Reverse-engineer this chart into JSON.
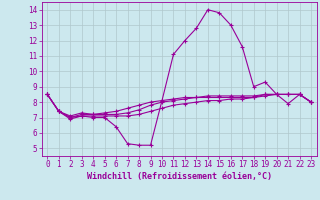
{
  "xlabel": "Windchill (Refroidissement éolien,°C)",
  "bg_color": "#cce8ee",
  "line_color": "#990099",
  "grid_color": "#b0c8cc",
  "xlim": [
    -0.5,
    23.5
  ],
  "ylim": [
    4.5,
    14.5
  ],
  "xticks": [
    0,
    1,
    2,
    3,
    4,
    5,
    6,
    7,
    8,
    9,
    10,
    11,
    12,
    13,
    14,
    15,
    16,
    17,
    18,
    19,
    20,
    21,
    22,
    23
  ],
  "yticks": [
    5,
    6,
    7,
    8,
    9,
    10,
    11,
    12,
    13,
    14
  ],
  "series": [
    [
      8.5,
      7.4,
      6.9,
      7.1,
      7.0,
      7.0,
      6.4,
      5.3,
      5.2,
      5.2,
      8.1,
      11.1,
      12.0,
      12.8,
      14.0,
      13.8,
      13.0,
      11.6,
      9.0,
      9.3,
      8.5,
      7.9,
      8.5,
      8.0
    ],
    [
      8.5,
      7.4,
      7.0,
      7.1,
      7.1,
      7.1,
      7.1,
      7.1,
      7.2,
      7.4,
      7.6,
      7.8,
      7.9,
      8.0,
      8.1,
      8.1,
      8.2,
      8.2,
      8.3,
      8.5,
      8.5,
      8.5,
      8.5,
      8.0
    ],
    [
      8.5,
      7.4,
      7.0,
      7.2,
      7.2,
      7.2,
      7.2,
      7.3,
      7.5,
      7.8,
      8.0,
      8.1,
      8.2,
      8.3,
      8.3,
      8.3,
      8.3,
      8.3,
      8.3,
      8.4,
      8.5,
      8.5,
      8.5,
      8.0
    ],
    [
      8.5,
      7.4,
      7.1,
      7.3,
      7.2,
      7.3,
      7.4,
      7.6,
      7.8,
      8.0,
      8.1,
      8.2,
      8.3,
      8.3,
      8.4,
      8.4,
      8.4,
      8.4,
      8.4,
      8.5,
      8.5,
      8.5,
      8.5,
      8.0
    ]
  ],
  "marker": "+",
  "markersize": 3,
  "linewidth": 0.8,
  "tick_fontsize": 5.5,
  "xlabel_fontsize": 6.0
}
